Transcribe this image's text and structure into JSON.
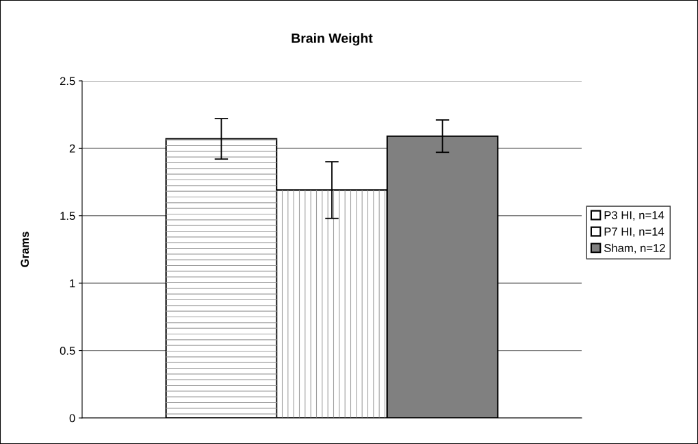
{
  "chart_data": {
    "type": "bar",
    "title": "Brain Weight",
    "ylabel": "Grams",
    "categories": [
      null
    ],
    "series": [
      {
        "name": "P3 HI, n=14",
        "color": "#ffffff",
        "values": [
          2.07
        ],
        "errors": [
          0.15
        ]
      },
      {
        "name": "P7 HI, n=14",
        "color": "#ffffff",
        "values": [
          1.69
        ],
        "errors": [
          0.21
        ]
      },
      {
        "name": "Sham, n=12",
        "color": "#808080",
        "values": [
          2.09
        ],
        "errors": [
          0.12
        ]
      }
    ],
    "ylim": [
      0,
      2.5
    ],
    "yticks": [
      0,
      0.5,
      1,
      1.5,
      2,
      2.5
    ],
    "grid": "y",
    "legend": "right"
  }
}
